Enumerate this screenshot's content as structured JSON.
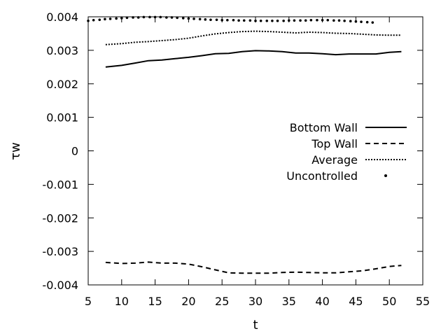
{
  "chart_data": {
    "type": "line",
    "xlabel": "t",
    "ylabel": "τw",
    "xlim": [
      5,
      55
    ],
    "ylim": [
      -0.004,
      0.004
    ],
    "x_ticks": [
      5,
      10,
      15,
      20,
      25,
      30,
      35,
      40,
      45,
      50,
      55
    ],
    "x_tick_labels": [
      "5",
      "10",
      "15",
      "20",
      "25",
      "30",
      "35",
      "40",
      "45",
      "50",
      "55"
    ],
    "y_ticks": [
      -0.004,
      -0.003,
      -0.002,
      -0.001,
      0,
      0.001,
      0.002,
      0.003,
      0.004
    ],
    "y_tick_labels": [
      "-0.004",
      "-0.003",
      "-0.002",
      "-0.001",
      "0",
      "0.001",
      "0.002",
      "0.003",
      "0.004"
    ],
    "grid": false,
    "legend_position": "right-middle",
    "series": [
      {
        "name": "Bottom Wall",
        "style": "solid",
        "color": "#000000",
        "x": [
          7.6,
          10,
          12,
          14,
          16,
          18,
          20,
          22,
          24,
          26,
          28,
          30,
          32,
          34,
          36,
          38,
          40,
          42,
          44,
          46,
          48,
          50,
          51.8
        ],
        "y": [
          0.0025,
          0.00255,
          0.00262,
          0.00269,
          0.00271,
          0.00275,
          0.00279,
          0.00284,
          0.0029,
          0.00291,
          0.00296,
          0.00299,
          0.00298,
          0.00296,
          0.00292,
          0.00292,
          0.0029,
          0.00287,
          0.00289,
          0.00289,
          0.00289,
          0.00294,
          0.00296
        ]
      },
      {
        "name": "Top Wall",
        "style": "dashed",
        "color": "#000000",
        "x": [
          7.6,
          10,
          12,
          14,
          16,
          18,
          20,
          22,
          24,
          26,
          28,
          30,
          32,
          34,
          36,
          38,
          40,
          42,
          44,
          46,
          48,
          50,
          51.8
        ],
        "y": [
          -0.00333,
          -0.00336,
          -0.00335,
          -0.00332,
          -0.00335,
          -0.00335,
          -0.00338,
          -0.00346,
          -0.00355,
          -0.00364,
          -0.00365,
          -0.00365,
          -0.00365,
          -0.00363,
          -0.00362,
          -0.00363,
          -0.00364,
          -0.00364,
          -0.00361,
          -0.00358,
          -0.00352,
          -0.00345,
          -0.00342
        ]
      },
      {
        "name": "Average",
        "style": "dotted",
        "color": "#000000",
        "x": [
          7.6,
          10,
          12,
          14,
          16,
          18,
          20,
          22,
          24,
          26,
          28,
          30,
          32,
          34,
          36,
          38,
          40,
          42,
          44,
          46,
          48,
          50,
          51.8
        ],
        "y": [
          0.00317,
          0.0032,
          0.00324,
          0.00326,
          0.00329,
          0.00332,
          0.00336,
          0.00343,
          0.00349,
          0.00353,
          0.00356,
          0.00357,
          0.00356,
          0.00354,
          0.00352,
          0.00354,
          0.00353,
          0.00351,
          0.0035,
          0.00348,
          0.00346,
          0.00345,
          0.00345
        ]
      },
      {
        "name": "Uncontrolled",
        "style": "points",
        "color": "#000000",
        "x": [
          5.0,
          5.8,
          6.7,
          7.5,
          8.3,
          9.2,
          10.0,
          10.8,
          11.7,
          12.5,
          13.3,
          14.2,
          15.0,
          15.8,
          16.7,
          17.5,
          18.3,
          19.2,
          20.0,
          20.8,
          21.7,
          22.5,
          23.3,
          24.2,
          25.0,
          25.8,
          26.7,
          27.5,
          28.3,
          29.2,
          30.0,
          30.8,
          31.7,
          32.5,
          33.3,
          34.2,
          35.0,
          35.8,
          36.7,
          37.5,
          38.3,
          39.2,
          40.0,
          40.8,
          41.7,
          42.5,
          43.3,
          44.2,
          45.0,
          45.8,
          46.7,
          47.5
        ],
        "y": [
          0.00388,
          0.0039,
          0.00391,
          0.00393,
          0.00394,
          0.00395,
          0.00396,
          0.00397,
          0.00398,
          0.00398,
          0.00399,
          0.00399,
          0.00399,
          0.00399,
          0.00398,
          0.00398,
          0.00397,
          0.00396,
          0.00395,
          0.00394,
          0.00393,
          0.00392,
          0.00391,
          0.00391,
          0.0039,
          0.0039,
          0.0039,
          0.00389,
          0.00389,
          0.00389,
          0.00388,
          0.00388,
          0.00388,
          0.00388,
          0.00388,
          0.00388,
          0.00389,
          0.00389,
          0.00389,
          0.00389,
          0.0039,
          0.0039,
          0.0039,
          0.0039,
          0.00389,
          0.00389,
          0.00388,
          0.00387,
          0.00386,
          0.00385,
          0.00384,
          0.00383
        ]
      }
    ]
  }
}
